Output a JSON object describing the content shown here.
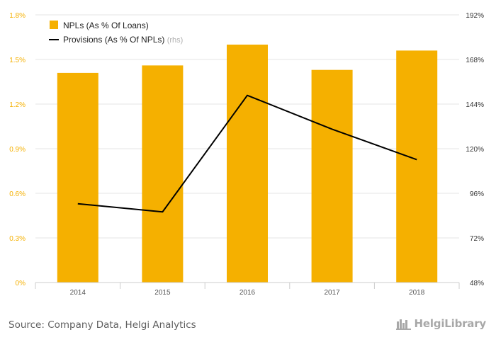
{
  "chart_data": {
    "type": "bar+line",
    "categories": [
      "2014",
      "2015",
      "2016",
      "2017",
      "2018"
    ],
    "series": [
      {
        "name": "NPLs (As % Of Loans)",
        "type": "bar",
        "axis": "left",
        "color": "#f5b000",
        "values": [
          1.41,
          1.46,
          1.6,
          1.43,
          1.56
        ]
      },
      {
        "name": "Provisions (As % Of NPLs)",
        "name_suffix": "(rhs)",
        "type": "line",
        "axis": "right",
        "color": "#000000",
        "values": [
          90.4,
          86.0,
          148.7,
          130.5,
          114.1
        ]
      }
    ],
    "left_axis": {
      "min": 0,
      "max": 1.8,
      "ticks": [
        "0%",
        "0.3%",
        "0.6%",
        "0.9%",
        "1.2%",
        "1.5%",
        "1.8%"
      ],
      "color": "#f5b000"
    },
    "right_axis": {
      "min": 48,
      "max": 192,
      "ticks": [
        "48%",
        "72%",
        "96%",
        "120%",
        "144%",
        "168%",
        "192%"
      ]
    },
    "grid": true,
    "legend_position": "top-left"
  },
  "footer": {
    "source": "Source: Company Data, Helgi Analytics",
    "brand": "HelgiLibrary"
  }
}
